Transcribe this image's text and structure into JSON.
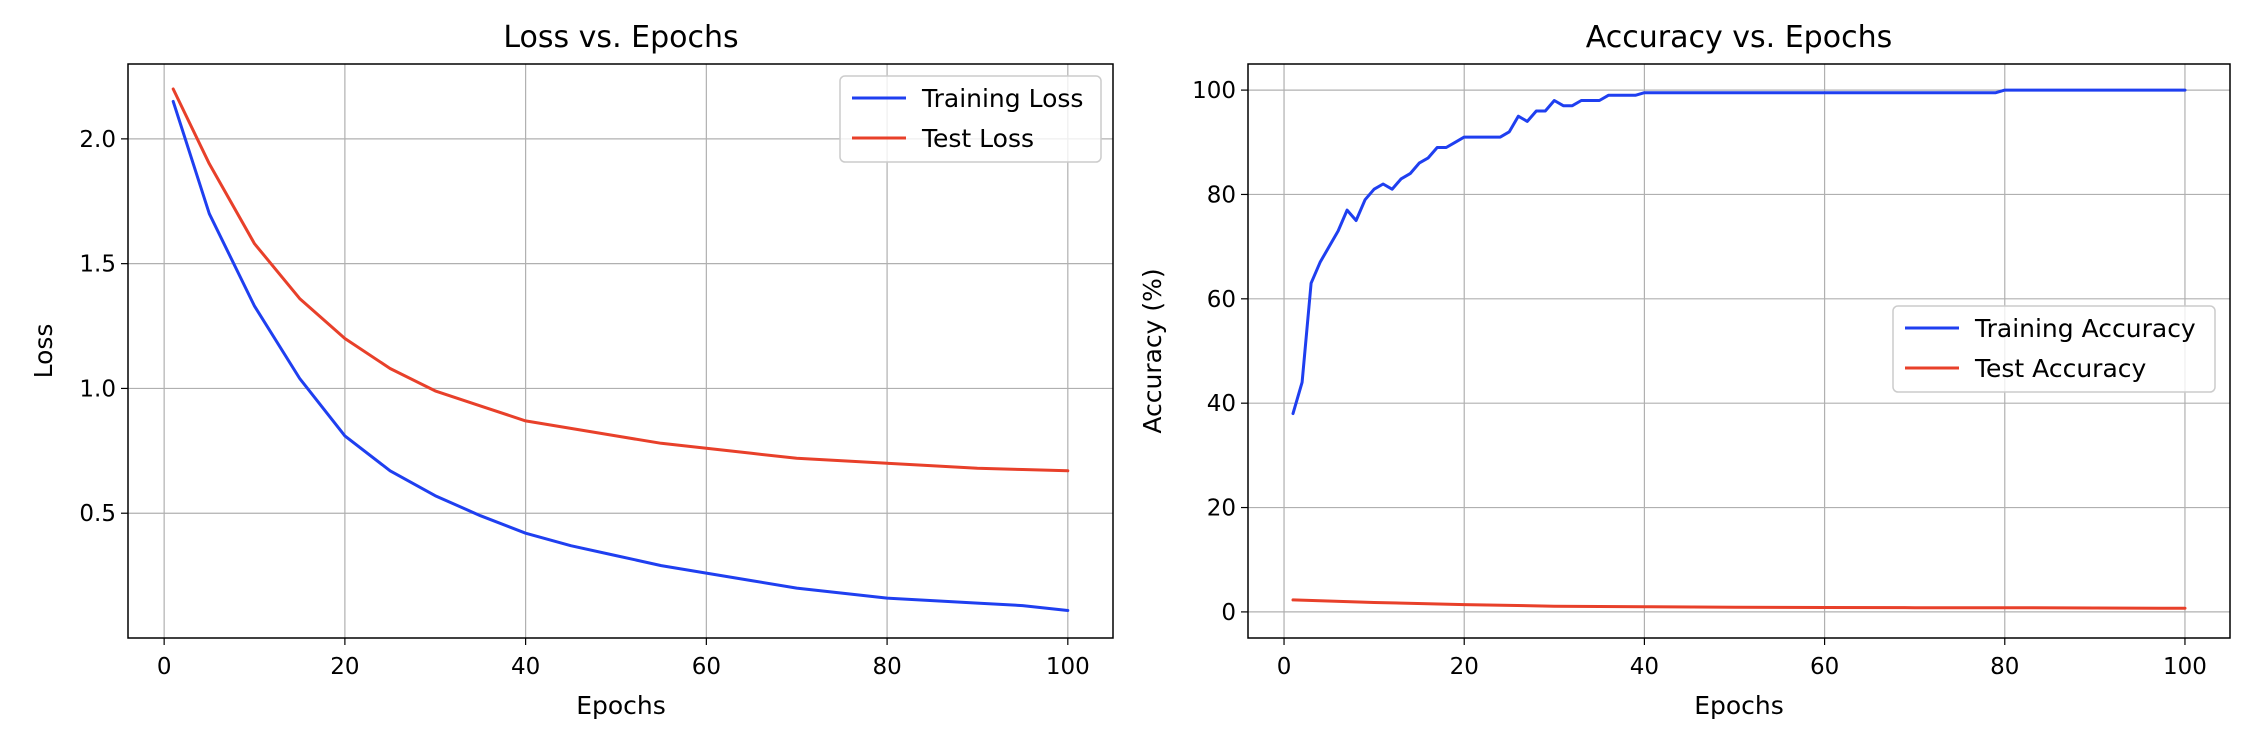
{
  "chart_data": [
    {
      "type": "line",
      "title": "Loss vs. Epochs",
      "xlabel": "Epochs",
      "ylabel": "Loss",
      "xlim": [
        -4,
        105
      ],
      "ylim": [
        0.0,
        2.3
      ],
      "xticks": [
        0,
        20,
        40,
        60,
        80,
        100
      ],
      "yticks": [
        0.5,
        1.0,
        1.5,
        2.0
      ],
      "xtick_labels": [
        "0",
        "20",
        "40",
        "60",
        "80",
        "100"
      ],
      "ytick_labels": [
        "0.5",
        "1.0",
        "1.5",
        "2.0"
      ],
      "grid": true,
      "legend_position": "top-right",
      "series": [
        {
          "name": "Training Loss",
          "color": "#1f3ff0",
          "x": [
            1,
            5,
            10,
            15,
            20,
            25,
            30,
            35,
            40,
            45,
            50,
            55,
            60,
            65,
            70,
            75,
            80,
            85,
            90,
            95,
            100
          ],
          "y": [
            2.15,
            1.7,
            1.33,
            1.04,
            0.81,
            0.67,
            0.57,
            0.49,
            0.42,
            0.37,
            0.33,
            0.29,
            0.26,
            0.23,
            0.2,
            0.18,
            0.16,
            0.15,
            0.14,
            0.13,
            0.11
          ]
        },
        {
          "name": "Test Loss",
          "color": "#e8402a",
          "x": [
            1,
            5,
            10,
            15,
            20,
            25,
            30,
            35,
            40,
            45,
            50,
            55,
            60,
            65,
            70,
            75,
            80,
            85,
            90,
            95,
            100
          ],
          "y": [
            2.2,
            1.9,
            1.58,
            1.36,
            1.2,
            1.08,
            0.99,
            0.93,
            0.87,
            0.84,
            0.81,
            0.78,
            0.76,
            0.74,
            0.72,
            0.71,
            0.7,
            0.69,
            0.68,
            0.675,
            0.67
          ]
        }
      ]
    },
    {
      "type": "line",
      "title": "Accuracy vs. Epochs",
      "xlabel": "Epochs",
      "ylabel": "Accuracy (%)",
      "xlim": [
        -4,
        105
      ],
      "ylim": [
        -5,
        105
      ],
      "xticks": [
        0,
        20,
        40,
        60,
        80,
        100
      ],
      "yticks": [
        0,
        20,
        40,
        60,
        80,
        100
      ],
      "xtick_labels": [
        "0",
        "20",
        "40",
        "60",
        "80",
        "100"
      ],
      "ytick_labels": [
        "0",
        "20",
        "40",
        "60",
        "80",
        "100"
      ],
      "grid": true,
      "legend_position": "center-right",
      "series": [
        {
          "name": "Training Accuracy",
          "color": "#1f3ff0",
          "x": [
            1,
            2,
            3,
            4,
            5,
            6,
            7,
            8,
            9,
            10,
            11,
            12,
            13,
            14,
            15,
            16,
            17,
            18,
            19,
            20,
            22,
            24,
            25,
            26,
            27,
            28,
            29,
            30,
            31,
            32,
            33,
            35,
            36,
            38,
            39,
            40,
            50,
            60,
            70,
            79,
            80,
            90,
            100
          ],
          "y": [
            38,
            44,
            63,
            67,
            70,
            73,
            77,
            75,
            79,
            81,
            82,
            81,
            83,
            84,
            86,
            87,
            89,
            89,
            90,
            91,
            91,
            91,
            92,
            95,
            94,
            96,
            96,
            98,
            97,
            97,
            98,
            98,
            99,
            99,
            99,
            99.5,
            99.5,
            99.5,
            99.5,
            99.5,
            100,
            100,
            100
          ]
        },
        {
          "name": "Test Accuracy",
          "color": "#e8402a",
          "x": [
            1,
            10,
            20,
            30,
            40,
            50,
            60,
            70,
            80,
            90,
            100
          ],
          "y": [
            2.3,
            1.8,
            1.4,
            1.1,
            1.0,
            0.9,
            0.85,
            0.8,
            0.8,
            0.75,
            0.7
          ]
        }
      ]
    }
  ]
}
